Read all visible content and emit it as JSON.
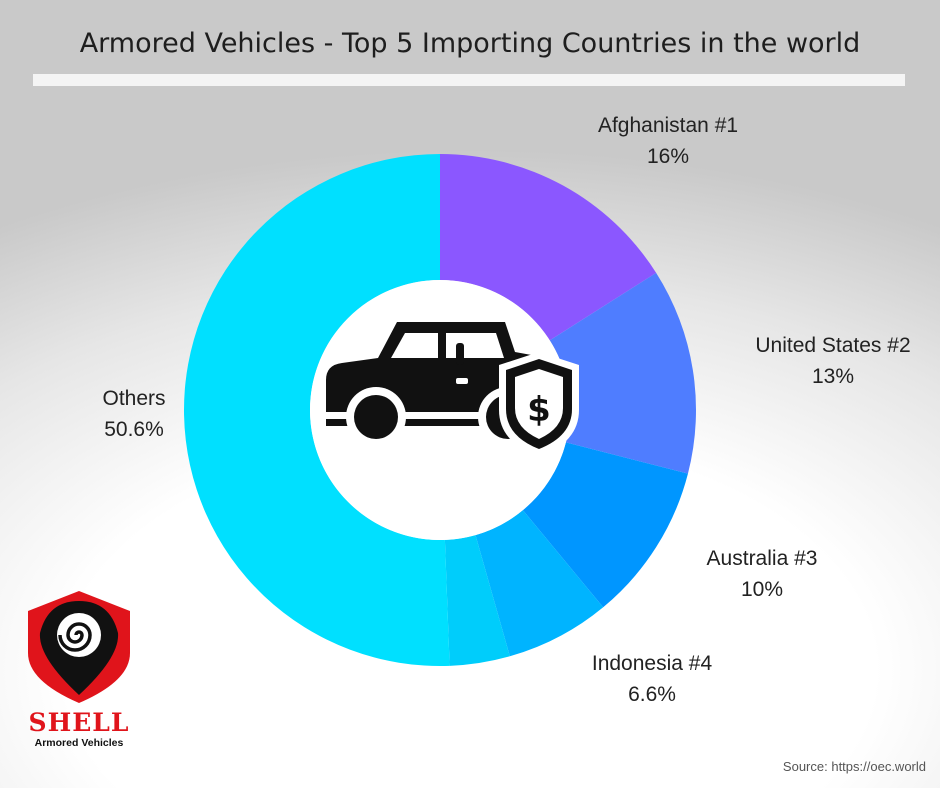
{
  "chart_data": {
    "type": "pie",
    "donut": true,
    "title": "Armored Vehicles - Top 5 Importing Countries in the world",
    "slices": [
      {
        "name": "Afghanistan #1",
        "value": 16,
        "label": "16%",
        "color": "#8b57ff"
      },
      {
        "name": "United States #2",
        "value": 13,
        "label": "13%",
        "color": "#4f7dff"
      },
      {
        "name": "Australia #3",
        "value": 10,
        "label": "10%",
        "color": "#0096ff"
      },
      {
        "name": "Indonesia #4",
        "value": 6.6,
        "label": "6.6%",
        "color": "#00b4ff"
      },
      {
        "name": "",
        "value": 3.8,
        "label": "",
        "color": "#00cdfb"
      },
      {
        "name": "Others",
        "value": 50.6,
        "label": "50.6%",
        "color": "#00e0ff"
      }
    ]
  },
  "center_icon": "armored-car-shield-dollar-icon",
  "logo": {
    "name": "SHELL",
    "subtitle": "Armored Vehicles",
    "icon": "shell-shield-logo-icon"
  },
  "source": "Source: https://oec.world"
}
